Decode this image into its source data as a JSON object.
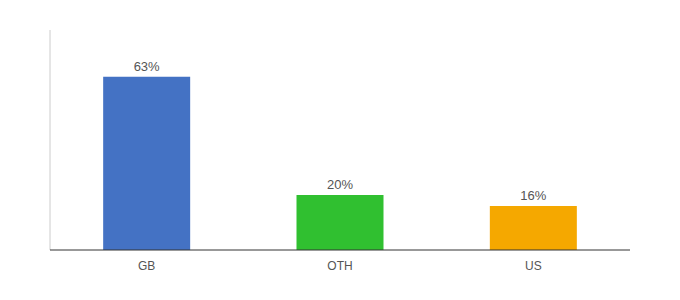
{
  "chart_data": {
    "type": "bar",
    "categories": [
      "GB",
      "OTH",
      "US"
    ],
    "values": [
      63,
      20,
      16
    ],
    "value_labels": [
      "63%",
      "20%",
      "16%"
    ],
    "colors": [
      "#4472c4",
      "#30c030",
      "#f5a800"
    ],
    "ylim": [
      0,
      80
    ],
    "data_labels": true,
    "tick_labels": "x",
    "grid": false
  }
}
